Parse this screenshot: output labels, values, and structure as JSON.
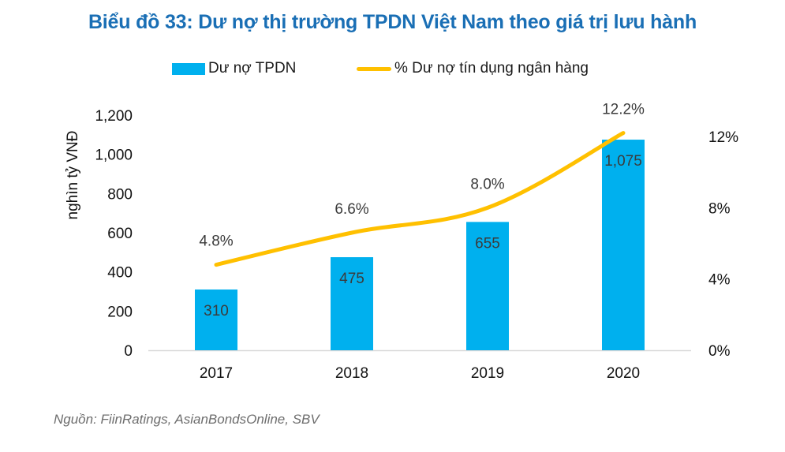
{
  "chart_data": {
    "type": "bar",
    "title": "Biểu đồ 33: Dư nợ thị trường TPDN Việt Nam theo giá trị lưu hành",
    "categories": [
      "2017",
      "2018",
      "2019",
      "2020"
    ],
    "series": [
      {
        "name": "Dư nợ TPDN",
        "type": "bar",
        "axis": "left",
        "color": "#00b0ee",
        "values": [
          310,
          475,
          655,
          1075
        ],
        "labels": [
          "310",
          "475",
          "655",
          "1,075"
        ]
      },
      {
        "name": "% Dư nợ tín dụng ngân hàng",
        "type": "line",
        "axis": "right",
        "color": "#ffc000",
        "values": [
          4.8,
          6.6,
          8.0,
          12.2
        ],
        "labels": [
          "4.8%",
          "6.6%",
          "8.0%",
          "12.2%"
        ]
      }
    ],
    "ylabel": "nghìn tỷ VNĐ",
    "xlabel": "",
    "ylim": [
      0,
      1200
    ],
    "yticks": [
      "0",
      "200",
      "400",
      "600",
      "800",
      "1,000",
      "1,200"
    ],
    "ytick_values": [
      0,
      200,
      400,
      600,
      800,
      1000,
      1200
    ],
    "y2lim": [
      0,
      13.2
    ],
    "y2ticks": [
      "0%",
      "4%",
      "8%",
      "12%"
    ],
    "y2tick_values": [
      0,
      4,
      8,
      12
    ],
    "grid": false,
    "legend_position": "top-center"
  },
  "source": "Nguồn: FiinRatings, AsianBondsOnline, SBV"
}
